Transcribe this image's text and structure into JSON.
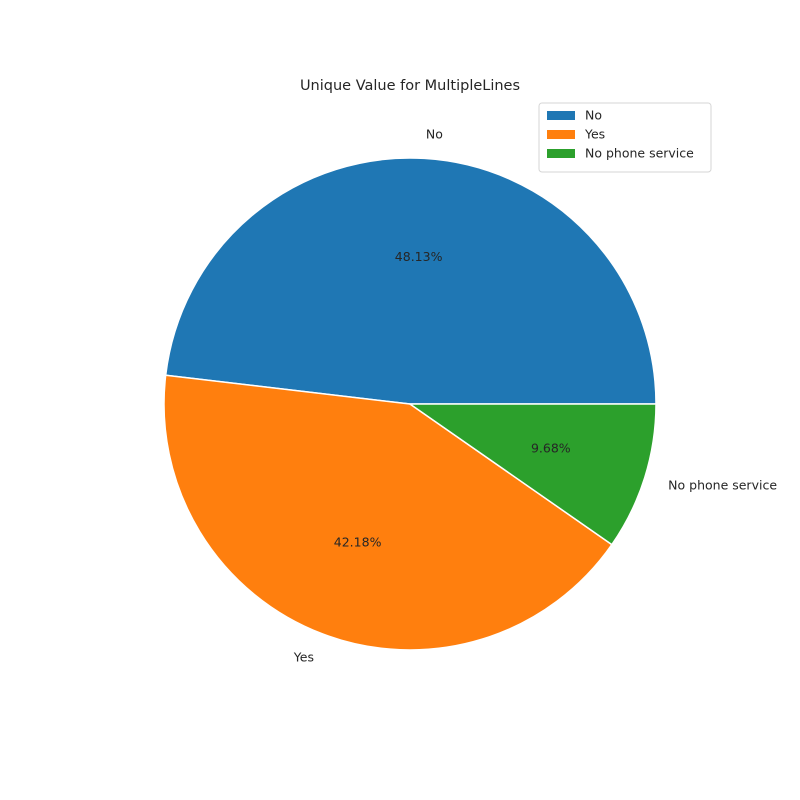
{
  "chart_data": {
    "type": "pie",
    "title": "Unique Value for MultipleLines",
    "categories": [
      "No",
      "Yes",
      "No phone service"
    ],
    "values": [
      48.13,
      42.18,
      9.68
    ],
    "value_format": "percent",
    "colors": [
      "#1f77b4",
      "#ff7f0e",
      "#2ca02c"
    ],
    "start_angle_deg": 0,
    "direction": "counterclockwise",
    "slice_edge_color": "#ffffff",
    "legend": {
      "placement": "upper-right",
      "entries": [
        "No",
        "Yes",
        "No phone service"
      ]
    }
  }
}
